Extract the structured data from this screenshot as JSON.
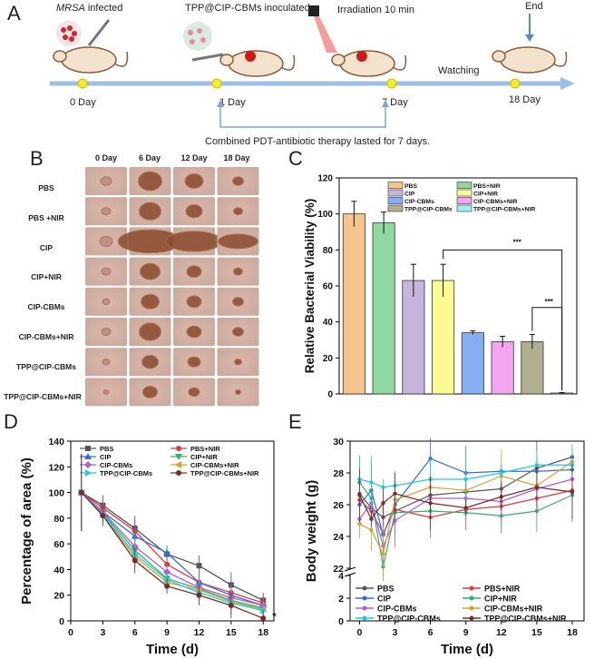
{
  "panelA": {
    "label": "A",
    "mrsa": "MRSA",
    "infected": " infected",
    "inoculated": "TPP@CIP-CBMs inoculated",
    "irradiation": "Irradiation 10 min",
    "end": "End",
    "watching": "Watching",
    "days": [
      "0 Day",
      "1 Day",
      "7 Day",
      "18 Day"
    ],
    "therapy_note": "Combined PDT-antibiotic therapy lasted for 7 days."
  },
  "panelB": {
    "label": "B",
    "columns": [
      "0 Day",
      "6 Day",
      "12 Day",
      "18 Day"
    ],
    "rows": [
      "PBS",
      "PBS +NIR",
      "CIP",
      "CIP+NIR",
      "CIP-CBMs",
      "CIP-CBMs+NIR",
      "TPP@CIP-CBMs",
      "TPP@CIP-CBMs+NIR"
    ]
  },
  "chart_data": [
    {
      "panel": "C",
      "type": "bar",
      "ylabel": "Relative Bacterial Viability (%)",
      "ylim": [
        0,
        120
      ],
      "yticks": [
        0,
        20,
        40,
        60,
        80,
        100,
        120
      ],
      "categories": [
        "PBS",
        "PBS+NIR",
        "CIP",
        "CIP+NIR",
        "CIP-CBMs",
        "CIP-CBMs+NIR",
        "TPP@CIP-CBMs",
        "TPP@CIP-CBMs+NIR"
      ],
      "values": [
        100,
        95,
        63,
        63,
        34,
        29,
        29,
        0.5
      ],
      "errors": [
        7,
        6,
        9,
        9,
        1,
        3,
        4,
        0.3
      ],
      "colors": [
        "#f7c48d",
        "#8fd9a0",
        "#c6b4dc",
        "#fbfb92",
        "#86aef2",
        "#f5a5f0",
        "#b2ae90",
        "#9ff0f2"
      ],
      "significance": [
        {
          "from": "CIP+NIR",
          "to": "TPP@CIP-CBMs+NIR",
          "label": "***"
        },
        {
          "from": "TPP@CIP-CBMs",
          "to": "TPP@CIP-CBMs+NIR",
          "label": "***"
        }
      ]
    },
    {
      "panel": "D",
      "type": "line",
      "xlabel": "Time (d)",
      "ylabel": "Percentage of area (%)",
      "xlim": [
        0,
        19
      ],
      "ylim": [
        0,
        140
      ],
      "xticks": [
        0,
        3,
        6,
        9,
        12,
        15,
        18
      ],
      "yticks": [
        0,
        20,
        40,
        60,
        80,
        100,
        120,
        140
      ],
      "x": [
        1,
        3,
        6,
        9,
        12,
        15,
        18
      ],
      "annotation": "*",
      "series": [
        {
          "name": "PBS",
          "color": "#555555",
          "marker": "square",
          "values": [
            100,
            90,
            72,
            52,
            43,
            28,
            16
          ]
        },
        {
          "name": "PBS+NIR",
          "color": "#e0393e",
          "marker": "circle",
          "values": [
            100,
            88,
            70,
            44,
            30,
            22,
            14
          ]
        },
        {
          "name": "CIP",
          "color": "#2f6fd6",
          "marker": "triangle",
          "values": [
            100,
            85,
            66,
            53,
            30,
            20,
            12
          ]
        },
        {
          "name": "CIP+NIR",
          "color": "#2cb36a",
          "marker": "triangle-down",
          "values": [
            100,
            84,
            55,
            33,
            25,
            16,
            10
          ]
        },
        {
          "name": "CIP-CBMs",
          "color": "#b05bd6",
          "marker": "diamond",
          "values": [
            100,
            85,
            58,
            38,
            26,
            18,
            12
          ]
        },
        {
          "name": "CIP-CBMs+NIR",
          "color": "#d9a12a",
          "marker": "triangle-left",
          "values": [
            100,
            82,
            50,
            30,
            24,
            15,
            9
          ]
        },
        {
          "name": "TPP@CIP-CBMs",
          "color": "#22c9dc",
          "marker": "triangle-right",
          "values": [
            100,
            83,
            52,
            32,
            22,
            14,
            8
          ]
        },
        {
          "name": "TPP@CIP-CBMs+NIR",
          "color": "#7a2b2b",
          "marker": "hexagon",
          "values": [
            100,
            82,
            47,
            27,
            20,
            12,
            2
          ]
        }
      ]
    },
    {
      "panel": "E",
      "type": "line",
      "xlabel": "Time (d)",
      "ylabel": "Body weight (g)",
      "xlim": [
        -0.8,
        19
      ],
      "ylim": [
        0,
        30
      ],
      "axis_break": [
        4,
        22
      ],
      "xticks": [
        0,
        3,
        6,
        9,
        12,
        15,
        18
      ],
      "yticks_upper": [
        22,
        24,
        26,
        28,
        30
      ],
      "yticks_lower": [
        0,
        2,
        4
      ],
      "x": [
        0,
        1,
        2,
        3,
        6,
        9,
        12,
        15,
        18
      ],
      "series": [
        {
          "name": "PBS",
          "color": "#555555",
          "values": [
            26.7,
            25.8,
            25.2,
            25.6,
            26.6,
            26.8,
            27.0,
            28.3,
            29.0
          ]
        },
        {
          "name": "PBS+NIR",
          "color": "#e0393e",
          "values": [
            26.3,
            25.6,
            24.2,
            25.7,
            25.2,
            25.7,
            25.9,
            26.4,
            26.9
          ]
        },
        {
          "name": "CIP",
          "color": "#2f6fd6",
          "values": [
            26.0,
            26.9,
            24.1,
            26.0,
            28.9,
            28.0,
            28.1,
            28.1,
            28.2
          ]
        },
        {
          "name": "CIP+NIR",
          "color": "#2cb36a",
          "values": [
            27.4,
            26.4,
            22.1,
            25.5,
            25.6,
            25.5,
            25.3,
            25.6,
            26.6
          ]
        },
        {
          "name": "CIP-CBMs",
          "color": "#b05bd6",
          "values": [
            25.1,
            26.1,
            23.4,
            25.0,
            26.4,
            26.4,
            26.2,
            27.0,
            27.6
          ]
        },
        {
          "name": "CIP-CBMs+NIR",
          "color": "#d9a12a",
          "values": [
            24.8,
            24.4,
            22.9,
            26.3,
            27.1,
            26.9,
            27.8,
            27.2,
            28.7
          ]
        },
        {
          "name": "TPP@CIP-CBMs",
          "color": "#22c9dc",
          "values": [
            27.6,
            27.4,
            27.1,
            27.2,
            27.6,
            27.6,
            28.0,
            28.5,
            28.5
          ]
        },
        {
          "name": "TPP@CIP-CBMs+NIR",
          "color": "#7a2b2b",
          "values": [
            26.6,
            25.1,
            26.1,
            26.7,
            26.1,
            25.8,
            26.5,
            27.1,
            26.8
          ]
        }
      ]
    }
  ]
}
